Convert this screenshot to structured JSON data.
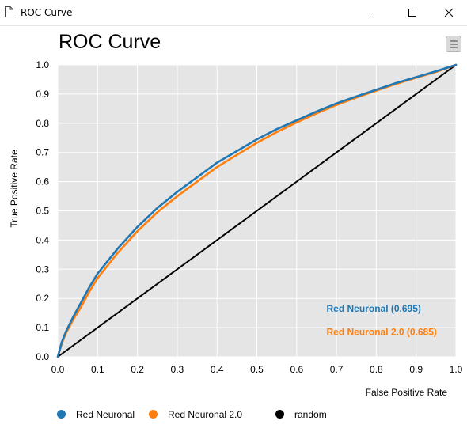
{
  "window": {
    "title": "ROC Curve",
    "icons": {
      "app": "document-icon",
      "minimize": "minimize-icon",
      "maximize": "maximize-icon",
      "close": "close-icon"
    }
  },
  "toolbar": {
    "menu_icon": "hamburger-menu-icon"
  },
  "chart_data": {
    "type": "line",
    "title": "ROC Curve",
    "xlabel": "False Positive Rate",
    "ylabel": "True Positive Rate",
    "xlim": [
      0,
      1
    ],
    "ylim": [
      0,
      1
    ],
    "xticks": [
      "0.0",
      "0.1",
      "0.2",
      "0.3",
      "0.4",
      "0.5",
      "0.6",
      "0.7",
      "0.8",
      "0.9",
      "1.0"
    ],
    "yticks": [
      "0.0",
      "0.1",
      "0.2",
      "0.3",
      "0.4",
      "0.5",
      "0.6",
      "0.7",
      "0.8",
      "0.9",
      "1.0"
    ],
    "grid": true,
    "background": "#e5e5e5",
    "series": [
      {
        "name": "Red Neuronal",
        "color": "#1f77b4",
        "annotation": "Red Neuronal (0.695)",
        "x": [
          0,
          0.01,
          0.02,
          0.04,
          0.06,
          0.08,
          0.1,
          0.15,
          0.2,
          0.25,
          0.3,
          0.35,
          0.4,
          0.45,
          0.5,
          0.55,
          0.6,
          0.65,
          0.7,
          0.75,
          0.8,
          0.85,
          0.9,
          0.95,
          1.0
        ],
        "y": [
          0,
          0.05,
          0.085,
          0.14,
          0.19,
          0.24,
          0.285,
          0.37,
          0.445,
          0.51,
          0.565,
          0.615,
          0.665,
          0.705,
          0.745,
          0.78,
          0.81,
          0.84,
          0.868,
          0.892,
          0.915,
          0.938,
          0.958,
          0.978,
          1.0
        ]
      },
      {
        "name": "Red Neuronal 2.0",
        "color": "#ff7f0e",
        "annotation": "Red Neuronal 2.0 (0.685)",
        "x": [
          0,
          0.01,
          0.02,
          0.04,
          0.06,
          0.08,
          0.1,
          0.15,
          0.2,
          0.25,
          0.3,
          0.35,
          0.4,
          0.45,
          0.5,
          0.55,
          0.6,
          0.65,
          0.7,
          0.75,
          0.8,
          0.85,
          0.9,
          0.95,
          1.0
        ],
        "y": [
          0,
          0.045,
          0.08,
          0.13,
          0.175,
          0.225,
          0.27,
          0.355,
          0.43,
          0.495,
          0.55,
          0.6,
          0.65,
          0.692,
          0.733,
          0.77,
          0.803,
          0.834,
          0.863,
          0.888,
          0.912,
          0.935,
          0.956,
          0.976,
          1.0
        ]
      },
      {
        "name": "random",
        "color": "#000000",
        "x": [
          0,
          1
        ],
        "y": [
          0,
          1
        ]
      }
    ],
    "legend": [
      "Red Neuronal",
      "Red Neuronal 2.0",
      "random"
    ],
    "legend_position": "bottom"
  }
}
